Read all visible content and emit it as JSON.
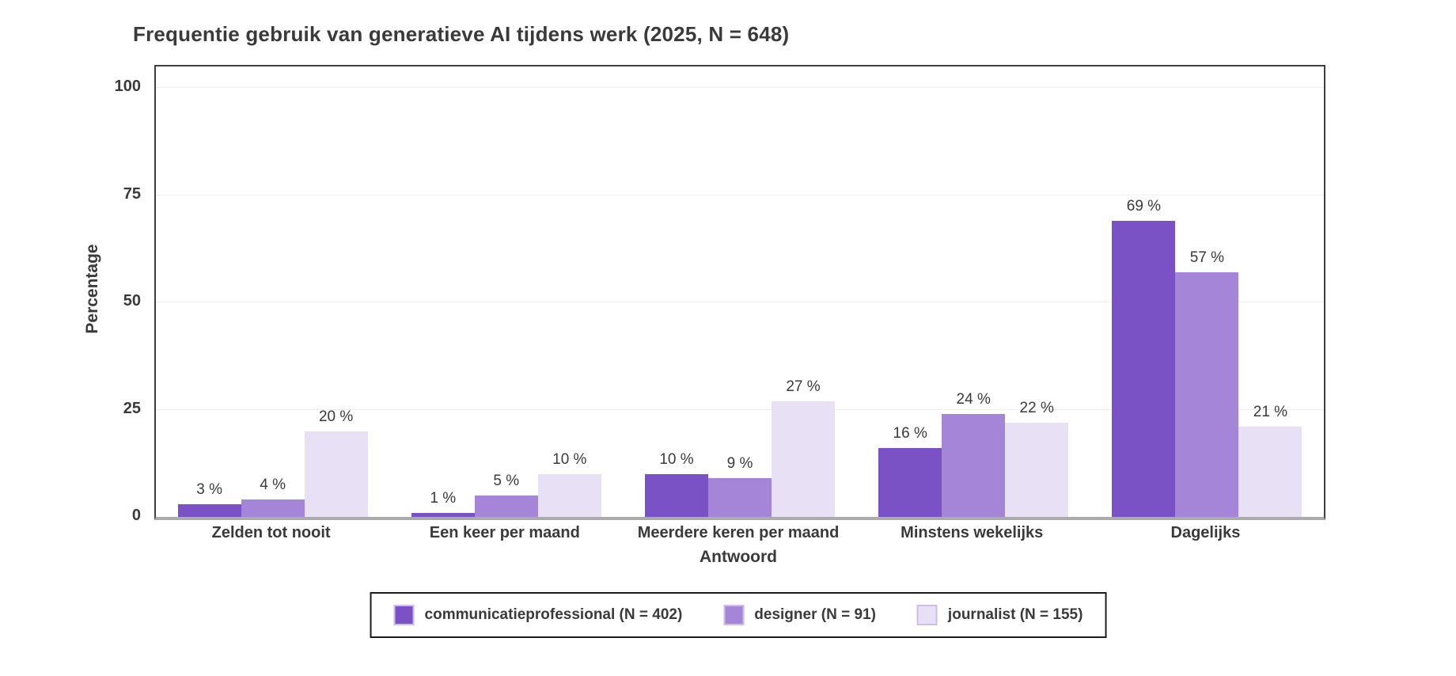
{
  "chart_data": {
    "type": "bar",
    "title": "Frequentie gebruik van generatieve AI tijdens werk (2025, N = 648)",
    "xlabel": "Antwoord",
    "ylabel": "Percentage",
    "ylim": [
      0,
      105
    ],
    "yticks": [
      0,
      25,
      50,
      75,
      100
    ],
    "grid": "horizontal",
    "legend_position": "bottom-center",
    "categories": [
      "Zelden tot nooit",
      "Een keer per maand",
      "Meerdere keren per maand",
      "Minstens wekelijks",
      "Dagelijks"
    ],
    "series": [
      {
        "name": "communicatieprofessional (N = 402)",
        "color": "#7B51C6",
        "values": [
          3,
          1,
          10,
          16,
          69
        ],
        "labels": [
          "3 %",
          "1 %",
          "10 %",
          "16 %",
          "69 %"
        ]
      },
      {
        "name": "designer (N = 91)",
        "color": "#A485D8",
        "values": [
          4,
          5,
          9,
          24,
          57
        ],
        "labels": [
          "4 %",
          "5 %",
          "9 %",
          "24 %",
          "57 %"
        ]
      },
      {
        "name": "journalist (N = 155)",
        "color": "#E8E1F5",
        "values": [
          20,
          10,
          27,
          22,
          21
        ],
        "labels": [
          "20 %",
          "10 %",
          "27 %",
          "22 %",
          "21 %"
        ]
      }
    ],
    "swatch_edge_color": "#CDBCEC",
    "text_color": "#3a3a3a"
  }
}
